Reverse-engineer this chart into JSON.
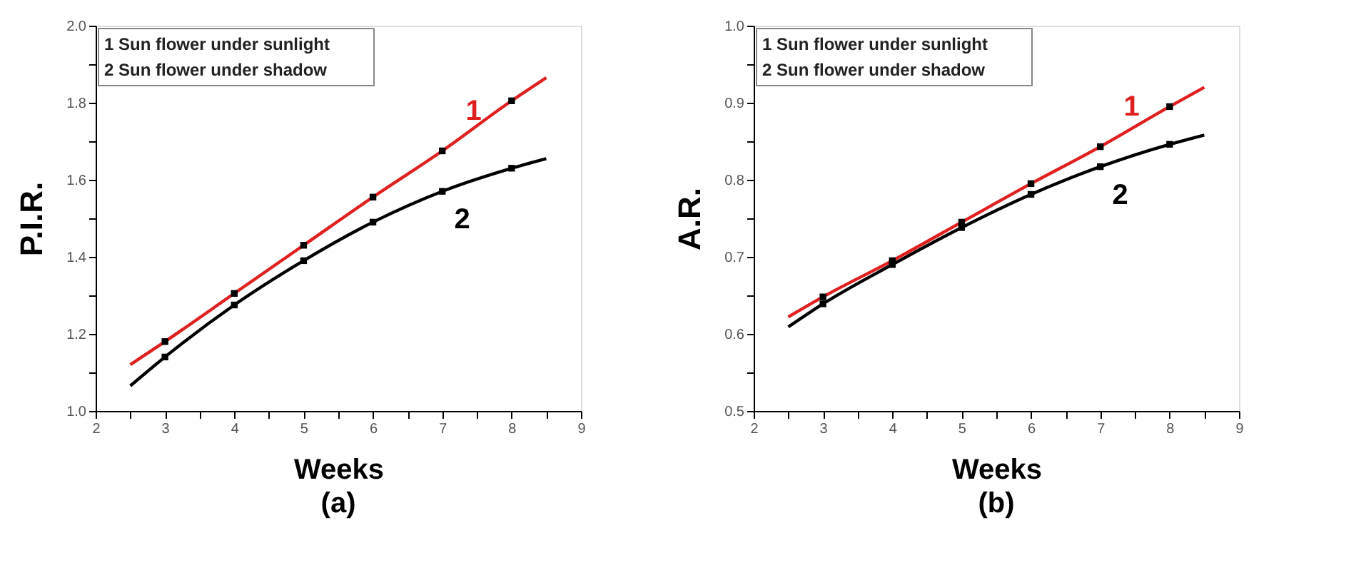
{
  "chart_data": [
    {
      "type": "line",
      "title": "(a)",
      "xlabel": "Weeks",
      "ylabel": "P.I.R.",
      "grid": false,
      "annotations": [
        "1 Sun flower under  sunlight",
        "2 Sun flower under shadow"
      ],
      "xlim": [
        2,
        9
      ],
      "xticks": [
        2,
        {
          "value": 2.5,
          "label": null
        },
        3,
        {
          "value": 3.5,
          "label": null
        },
        4,
        {
          "value": 4.5,
          "label": null
        },
        5,
        {
          "value": 5.5,
          "label": null
        },
        6,
        {
          "value": 6.5,
          "label": null
        },
        7,
        {
          "value": 7.5,
          "label": null
        },
        8,
        {
          "value": 8.5,
          "label": null
        },
        9
      ],
      "ylim": [
        1.0,
        2.0
      ],
      "yticks": [
        {
          "value": 1.0,
          "label": "1.0"
        },
        {
          "value": 1.1,
          "label": null
        },
        1.2,
        {
          "value": 1.3,
          "label": null
        },
        1.4,
        {
          "value": 1.5,
          "label": null
        },
        1.6,
        {
          "value": 1.7,
          "label": null
        },
        1.8,
        {
          "value": 1.9,
          "label": null
        },
        {
          "value": 2.0,
          "label": "2.0"
        }
      ],
      "series": [
        {
          "name": "1",
          "color": "#e02020",
          "x": [
            2.5,
            3,
            4,
            5,
            6,
            7,
            8,
            8.5
          ],
          "values": [
            1.12,
            1.18,
            1.305,
            1.43,
            1.555,
            1.675,
            1.805,
            1.865
          ]
        },
        {
          "name": "2",
          "color": "#000000",
          "x": [
            2.5,
            3,
            4,
            5,
            6,
            7,
            8,
            8.5
          ],
          "values": [
            1.065,
            1.14,
            1.275,
            1.39,
            1.49,
            1.57,
            1.63,
            1.655
          ]
        },
        {
          "type": "scatter",
          "marker": "square",
          "color": "#000000",
          "x": [
            3,
            4,
            5,
            6,
            7,
            8
          ],
          "values": [
            1.18,
            1.305,
            1.43,
            1.555,
            1.675,
            1.805
          ]
        },
        {
          "type": "scatter",
          "marker": "square",
          "color": "#000000",
          "x": [
            3,
            4,
            5,
            6,
            7,
            8
          ],
          "values": [
            1.14,
            1.275,
            1.39,
            1.49,
            1.57,
            1.63
          ]
        }
      ]
    },
    {
      "type": "line",
      "title": "(b)",
      "xlabel": "Weeks",
      "ylabel": "A.R.",
      "grid": false,
      "annotations": [
        "1 Sun flower under sunlight",
        "2 Sun flower under shadow"
      ],
      "xlim": [
        2,
        9
      ],
      "xticks": [
        2,
        {
          "value": 2.5,
          "label": null
        },
        3,
        {
          "value": 3.5,
          "label": null
        },
        4,
        {
          "value": 4.5,
          "label": null
        },
        5,
        {
          "value": 5.5,
          "label": null
        },
        6,
        {
          "value": 6.5,
          "label": null
        },
        7,
        {
          "value": 7.5,
          "label": null
        },
        8,
        {
          "value": 8.5,
          "label": null
        },
        9
      ],
      "ylim": [
        0.5,
        1.0
      ],
      "yticks": [
        0.5,
        {
          "value": 0.55,
          "label": null
        },
        0.6,
        {
          "value": 0.65,
          "label": null
        },
        0.7,
        {
          "value": 0.75,
          "label": null
        },
        0.8,
        {
          "value": 0.85,
          "label": null
        },
        0.9,
        {
          "value": 0.95,
          "label": null
        },
        {
          "value": 1.0,
          "label": "1.0"
        }
      ],
      "series": [
        {
          "name": "1",
          "color": "#e02020",
          "x": [
            2.5,
            3,
            4,
            5,
            6,
            7,
            8,
            8.5
          ],
          "values": [
            0.622,
            0.648,
            0.695,
            0.745,
            0.795,
            0.843,
            0.895,
            0.92
          ]
        },
        {
          "name": "2",
          "color": "#000000",
          "x": [
            2.5,
            3,
            4,
            5,
            6,
            7,
            8,
            8.5
          ],
          "values": [
            0.609,
            0.639,
            0.69,
            0.738,
            0.781,
            0.817,
            0.846,
            0.858
          ]
        },
        {
          "type": "scatter",
          "marker": "square",
          "color": "#000000",
          "x": [
            3,
            4,
            5,
            6,
            7,
            8
          ],
          "values": [
            0.648,
            0.695,
            0.745,
            0.795,
            0.843,
            0.895
          ]
        },
        {
          "type": "scatter",
          "marker": "square",
          "color": "#000000",
          "x": [
            3,
            4,
            5,
            6,
            7,
            8
          ],
          "values": [
            0.639,
            0.69,
            0.738,
            0.781,
            0.817,
            0.846
          ]
        }
      ]
    }
  ]
}
